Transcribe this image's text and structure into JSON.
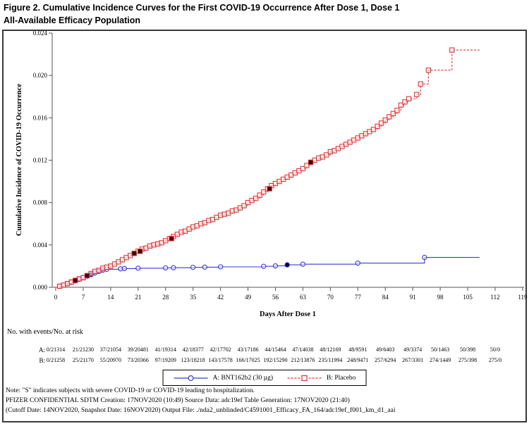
{
  "figure": {
    "title_line1": "Figure 2. Cumulative Incidence Curves for the First COVID-19 Occurrence After Dose 1, Dose 1",
    "title_line2": "All-Available Efficacy Population"
  },
  "chart_data": {
    "type": "line",
    "subtype": "kaplan-meier-step",
    "title": "",
    "xlabel": "Days After Dose 1",
    "ylabel": "Cumulative Incidence of COVID-19 Occurrence",
    "xlim": [
      0,
      119
    ],
    "ylim": [
      0,
      0.024
    ],
    "x_ticks": [
      0,
      7,
      14,
      21,
      28,
      35,
      42,
      49,
      56,
      63,
      70,
      77,
      84,
      91,
      98,
      105,
      112,
      119
    ],
    "y_ticks": [
      "0.000",
      "0.004",
      "0.008",
      "0.012",
      "0.016",
      "0.020",
      "0.024"
    ],
    "grid": false,
    "legend_position": "bottom",
    "series": [
      {
        "name": "A: BNT162b2 (30 µg)",
        "color": "#3a3ad6",
        "style": "solid",
        "marker": "circle",
        "points": [
          [
            0,
            0
          ],
          [
            1,
            9e-05
          ],
          [
            2,
            0.0002
          ],
          [
            3,
            0.00033
          ],
          [
            4,
            0.00047
          ],
          [
            5,
            0.0006
          ],
          [
            6,
            0.00075
          ],
          [
            7,
            0.00092
          ],
          [
            8,
            0.00105
          ],
          [
            9,
            0.0012
          ],
          [
            10,
            0.00135
          ],
          [
            11,
            0.0015
          ],
          [
            12,
            0.00162
          ],
          [
            13,
            0.0017
          ],
          [
            16.5,
            0.00174
          ],
          [
            17.5,
            0.00177
          ],
          [
            21,
            0.0018
          ],
          [
            28,
            0.00183
          ],
          [
            30,
            0.00185
          ],
          [
            35,
            0.00188
          ],
          [
            38,
            0.0019
          ],
          [
            42,
            0.00193
          ],
          [
            53,
            0.00198
          ],
          [
            56,
            0.00202
          ],
          [
            59,
            0.00212
          ],
          [
            63,
            0.00218
          ],
          [
            77,
            0.00228
          ],
          [
            94,
            0.00282
          ],
          [
            108,
            0.00282
          ]
        ],
        "marker_days": [
          1,
          2,
          3,
          4,
          5,
          6,
          7,
          8,
          9,
          10,
          11,
          12,
          13,
          16.5,
          17.5,
          21,
          28,
          30,
          35,
          38,
          42,
          53,
          56,
          63,
          77,
          94
        ],
        "severe_days": [
          9,
          59
        ],
        "severe_color": "#00002a"
      },
      {
        "name": "B: Placebo",
        "color": "#e53232",
        "style": "dashed",
        "marker": "square",
        "points": [
          [
            0,
            0
          ],
          [
            1,
            0.0001
          ],
          [
            2,
            0.0002
          ],
          [
            3,
            0.00035
          ],
          [
            4,
            0.0005
          ],
          [
            5,
            0.00065
          ],
          [
            6,
            0.0008
          ],
          [
            7,
            0.0009
          ],
          [
            8,
            0.0011
          ],
          [
            9,
            0.0013
          ],
          [
            10,
            0.0015
          ],
          [
            11,
            0.0016
          ],
          [
            12,
            0.0018
          ],
          [
            13,
            0.0019
          ],
          [
            14,
            0.002
          ],
          [
            15,
            0.0022
          ],
          [
            16,
            0.0024
          ],
          [
            17,
            0.0026
          ],
          [
            18,
            0.0028
          ],
          [
            19,
            0.003
          ],
          [
            20,
            0.0032
          ],
          [
            21,
            0.0034
          ],
          [
            22,
            0.0036
          ],
          [
            23,
            0.0037
          ],
          [
            24,
            0.0039
          ],
          [
            25,
            0.004
          ],
          [
            26,
            0.0041
          ],
          [
            27,
            0.0042
          ],
          [
            28,
            0.0044
          ],
          [
            29,
            0.0046
          ],
          [
            30,
            0.0048
          ],
          [
            31,
            0.005
          ],
          [
            32,
            0.0052
          ],
          [
            33,
            0.0053
          ],
          [
            34,
            0.0055
          ],
          [
            35,
            0.0057
          ],
          [
            36,
            0.0058
          ],
          [
            37,
            0.006
          ],
          [
            38,
            0.0061
          ],
          [
            39,
            0.0063
          ],
          [
            40,
            0.0064
          ],
          [
            41,
            0.0066
          ],
          [
            42,
            0.0068
          ],
          [
            43,
            0.0069
          ],
          [
            44,
            0.007
          ],
          [
            45,
            0.0072
          ],
          [
            46,
            0.0073
          ],
          [
            47,
            0.0075
          ],
          [
            48,
            0.0077
          ],
          [
            49,
            0.008
          ],
          [
            50,
            0.0082
          ],
          [
            51,
            0.0084
          ],
          [
            52,
            0.0087
          ],
          [
            53,
            0.009
          ],
          [
            54,
            0.0093
          ],
          [
            55,
            0.0096
          ],
          [
            56,
            0.0098
          ],
          [
            57,
            0.01
          ],
          [
            58,
            0.0102
          ],
          [
            59,
            0.0104
          ],
          [
            60,
            0.0106
          ],
          [
            61,
            0.0108
          ],
          [
            62,
            0.011
          ],
          [
            63,
            0.0112
          ],
          [
            64,
            0.0115
          ],
          [
            65,
            0.0118
          ],
          [
            66,
            0.012
          ],
          [
            67,
            0.0122
          ],
          [
            68,
            0.0123
          ],
          [
            69,
            0.0125
          ],
          [
            70,
            0.0128
          ],
          [
            71,
            0.0129
          ],
          [
            72,
            0.0131
          ],
          [
            73,
            0.0133
          ],
          [
            74,
            0.0135
          ],
          [
            75,
            0.0137
          ],
          [
            76,
            0.0139
          ],
          [
            77,
            0.0141
          ],
          [
            78,
            0.0143
          ],
          [
            79,
            0.0145
          ],
          [
            80,
            0.0147
          ],
          [
            81,
            0.0149
          ],
          [
            82,
            0.0152
          ],
          [
            83,
            0.0155
          ],
          [
            84,
            0.0158
          ],
          [
            85,
            0.0161
          ],
          [
            86,
            0.0164
          ],
          [
            87,
            0.0167
          ],
          [
            88,
            0.0172
          ],
          [
            89,
            0.0175
          ],
          [
            90,
            0.0178
          ],
          [
            92,
            0.0182
          ],
          [
            93,
            0.0192
          ],
          [
            95,
            0.0205
          ],
          [
            101,
            0.0224
          ],
          [
            108,
            0.0224
          ]
        ],
        "severe_days": [
          5,
          8,
          20,
          21.5,
          29.5,
          54.5,
          65
        ],
        "severe_color": "#3a0404"
      }
    ]
  },
  "risk_table": {
    "caption": "No. with events/No. at risk",
    "days": [
      0,
      7,
      14,
      21,
      28,
      35,
      42,
      49,
      56,
      63,
      70,
      77,
      84,
      91,
      98,
      105,
      112
    ],
    "rows": [
      {
        "label": "A:",
        "values": [
          "0/21314",
          "21/21230",
          "37/21054",
          "39/20481",
          "41/19314",
          "42/18377",
          "42/17702",
          "43/17186",
          "44/15464",
          "47/14038",
          "48/12169",
          "48/9591",
          "49/6403",
          "49/3374",
          "50/1463",
          "50/398",
          "50/0"
        ]
      },
      {
        "label": "B:",
        "values": [
          "0/21258",
          "25/21170",
          "55/20970",
          "73/20366",
          "97/19209",
          "123/18218",
          "143/17578",
          "166/17025",
          "192/15290",
          "212/13876",
          "235/11994",
          "248/9471",
          "257/6294",
          "267/3301",
          "274/1449",
          "275/398",
          "275/0"
        ]
      }
    ]
  },
  "legend": {
    "a_label": "A: BNT162b2 (30 µg)",
    "b_label": "B: Placebo"
  },
  "notes": [
    "Note: \"S\" indicates subjects with severe COVID-19 or COVID-19 leading to hospitalization.",
    "PFIZER CONFIDENTIAL  SDTM Creation: 17NOV2020 (10:49)  Source Data: adc19ef  Table Generation: 17NOV2020 (21:40)",
    "(Cutoff Date: 14NOV2020, Snapshot Date: 16NOV2020) Output File: ./nda2_unblinded/C4591001_Efficacy_FA_164/adc19ef_f001_km_d1_aai"
  ],
  "colors": {
    "bnt162b2_line": "#3a3ad6",
    "placebo_line": "#e53232",
    "severe_marker": "#2a0202",
    "frame_border": "#3a3a3a"
  }
}
